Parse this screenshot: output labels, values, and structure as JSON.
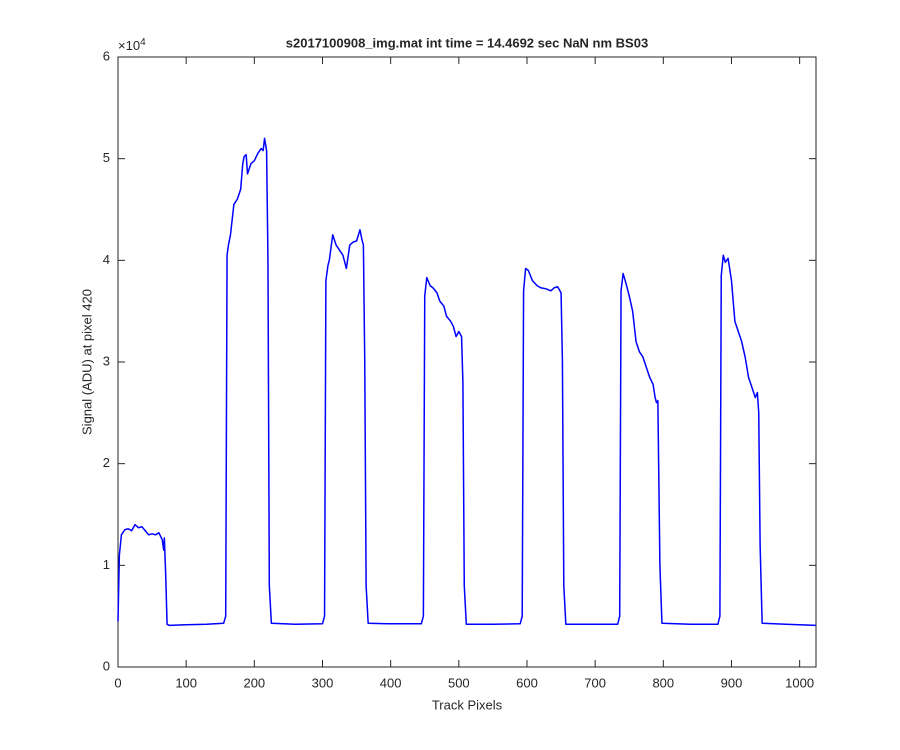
{
  "chart_data": {
    "type": "line",
    "title": "s2017100908_img.mat int time = 14.4692 sec  NaN nm BS03",
    "x_label": "Track Pixels",
    "y_label": "Signal (ADU) at pixel 420",
    "y_exponent": {
      "base": "×10",
      "power": "4"
    },
    "x": [
      0,
      2,
      5,
      10,
      15,
      20,
      25,
      30,
      35,
      40,
      45,
      50,
      55,
      60,
      65,
      67,
      68,
      70,
      72,
      75,
      100,
      130,
      155,
      158,
      160,
      162,
      165,
      170,
      175,
      180,
      183,
      185,
      188,
      190,
      195,
      200,
      205,
      210,
      213,
      215,
      218,
      220,
      222,
      225,
      260,
      300,
      303,
      305,
      308,
      310,
      315,
      320,
      325,
      330,
      335,
      340,
      345,
      350,
      355,
      358,
      360,
      362,
      364,
      367,
      400,
      445,
      448,
      450,
      453,
      458,
      462,
      468,
      472,
      478,
      482,
      488,
      492,
      496,
      500,
      504,
      506,
      508,
      511,
      550,
      590,
      593,
      595,
      598,
      602,
      608,
      615,
      620,
      628,
      635,
      640,
      645,
      650,
      652,
      654,
      657,
      700,
      733,
      736,
      738,
      741,
      745,
      750,
      755,
      760,
      765,
      770,
      775,
      780,
      785,
      788,
      790,
      792,
      795,
      798,
      840,
      880,
      883,
      885,
      888,
      891,
      895,
      900,
      905,
      910,
      915,
      920,
      925,
      930,
      935,
      938,
      940,
      942,
      945,
      980,
      1024
    ],
    "series": [
      {
        "color": "#0000ff",
        "values": [
          4500,
          11000,
          13000,
          13500,
          13600,
          13400,
          14000,
          13700,
          13800,
          13400,
          13000,
          13100,
          13000,
          13200,
          12500,
          11500,
          12700,
          9000,
          4200,
          4100,
          4150,
          4200,
          4300,
          5000,
          40500,
          41500,
          42500,
          45500,
          46000,
          47000,
          49500,
          50200,
          50400,
          48500,
          49500,
          49800,
          50500,
          51000,
          50800,
          52000,
          50800,
          40000,
          8000,
          4300,
          4200,
          4250,
          5000,
          38000,
          39500,
          40000,
          42500,
          41500,
          41000,
          40500,
          39200,
          41500,
          41800,
          41900,
          43000,
          42000,
          41500,
          30000,
          8000,
          4300,
          4250,
          4250,
          5000,
          36500,
          38300,
          37500,
          37300,
          36800,
          36000,
          35500,
          34500,
          34000,
          33500,
          32500,
          33000,
          32500,
          28000,
          8000,
          4200,
          4200,
          4250,
          5000,
          37000,
          39200,
          39000,
          38000,
          37500,
          37300,
          37200,
          37000,
          37300,
          37400,
          36800,
          30000,
          8000,
          4200,
          4200,
          4200,
          5000,
          37000,
          38700,
          37800,
          36500,
          35000,
          32000,
          31000,
          30500,
          29500,
          28500,
          27800,
          26500,
          26000,
          26200,
          10000,
          4300,
          4200,
          4200,
          5000,
          38500,
          40500,
          39800,
          40200,
          38000,
          34000,
          33000,
          32000,
          30500,
          28500,
          27500,
          26500,
          27000,
          25000,
          12000,
          4300,
          4200,
          4100
        ]
      }
    ],
    "xlim": [
      0,
      1024
    ],
    "xticks": [
      0,
      100,
      200,
      300,
      400,
      500,
      600,
      700,
      800,
      900,
      1000
    ],
    "ylim": [
      0,
      60000
    ],
    "yticks": [
      0,
      {
        "value": 10000,
        "label": "1"
      },
      {
        "value": 20000,
        "label": "2"
      },
      {
        "value": 30000,
        "label": "3"
      },
      {
        "value": 40000,
        "label": "4"
      },
      {
        "value": 50000,
        "label": "5"
      },
      {
        "value": 60000,
        "label": "6"
      }
    ]
  }
}
